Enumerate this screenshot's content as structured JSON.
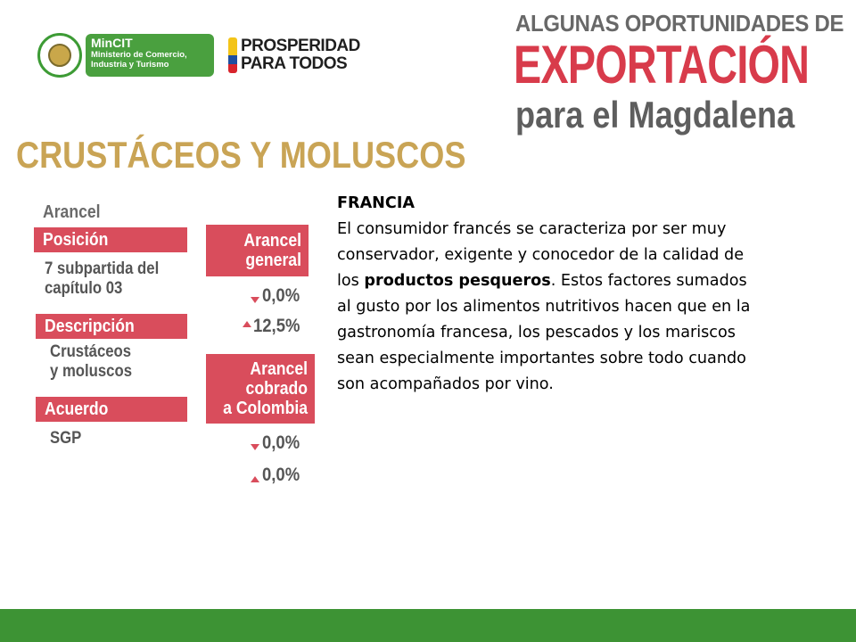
{
  "logos": {
    "mincit_title": "MinCIT",
    "mincit_sub_1": "Ministerio de Comercio,",
    "mincit_sub_2": "Industria y Turismo",
    "seal_name": "colombia-seal-icon",
    "prosperidad_line_1": "PROSPERIDAD",
    "prosperidad_line_2": "PARA TODOS",
    "flag_colors": [
      "#f3c418",
      "#1f4fa0",
      "#d8242c"
    ]
  },
  "title": {
    "line1": "ALGUNAS OPORTUNIDADES DE",
    "line2": "EXPORTACIÓN",
    "line3": "para el Magdalena"
  },
  "section_title": "CRUSTÁCEOS Y MOLUSCOS",
  "info": {
    "arancel_label": "Arancel",
    "posicion_label": "Posición",
    "posicion_value_1": "7 subpartida del",
    "posicion_value_2": "capítulo 03",
    "descripcion_label": "Descripción",
    "descripcion_value_1": "Crustáceos",
    "descripcion_value_2": "y moluscos",
    "acuerdo_label": "Acuerdo",
    "acuerdo_value": "SGP"
  },
  "tariffs": {
    "general_line1": "Arancel",
    "general_line2": "general",
    "general_min": "0,0%",
    "general_max": "12,5%",
    "cobrado_line1": "Arancel",
    "cobrado_line2": "cobrado",
    "cobrado_line3": "a Colombia",
    "cobrado_min": "0,0%",
    "cobrado_max": "0,0%"
  },
  "body": {
    "heading": "FRANCIA",
    "text_before": "El consumidor francés se caracteriza por ser muy conservador, exigente y conocedor de la calidad de los ",
    "bold_text": "productos pesqueros",
    "text_after": ". Estos factores sumados al gusto por los alimentos nutritivos hacen que  en la gastronomía francesa, los pescados y los mariscos sean especialmente importantes sobre todo cuando  son acompañados por vino."
  },
  "colors": {
    "accent_red": "#d94d5c",
    "title_red": "#d83b4b",
    "gold": "#c9a455",
    "footer_green": "#3d9334",
    "mincit_green": "#4aa03f"
  }
}
